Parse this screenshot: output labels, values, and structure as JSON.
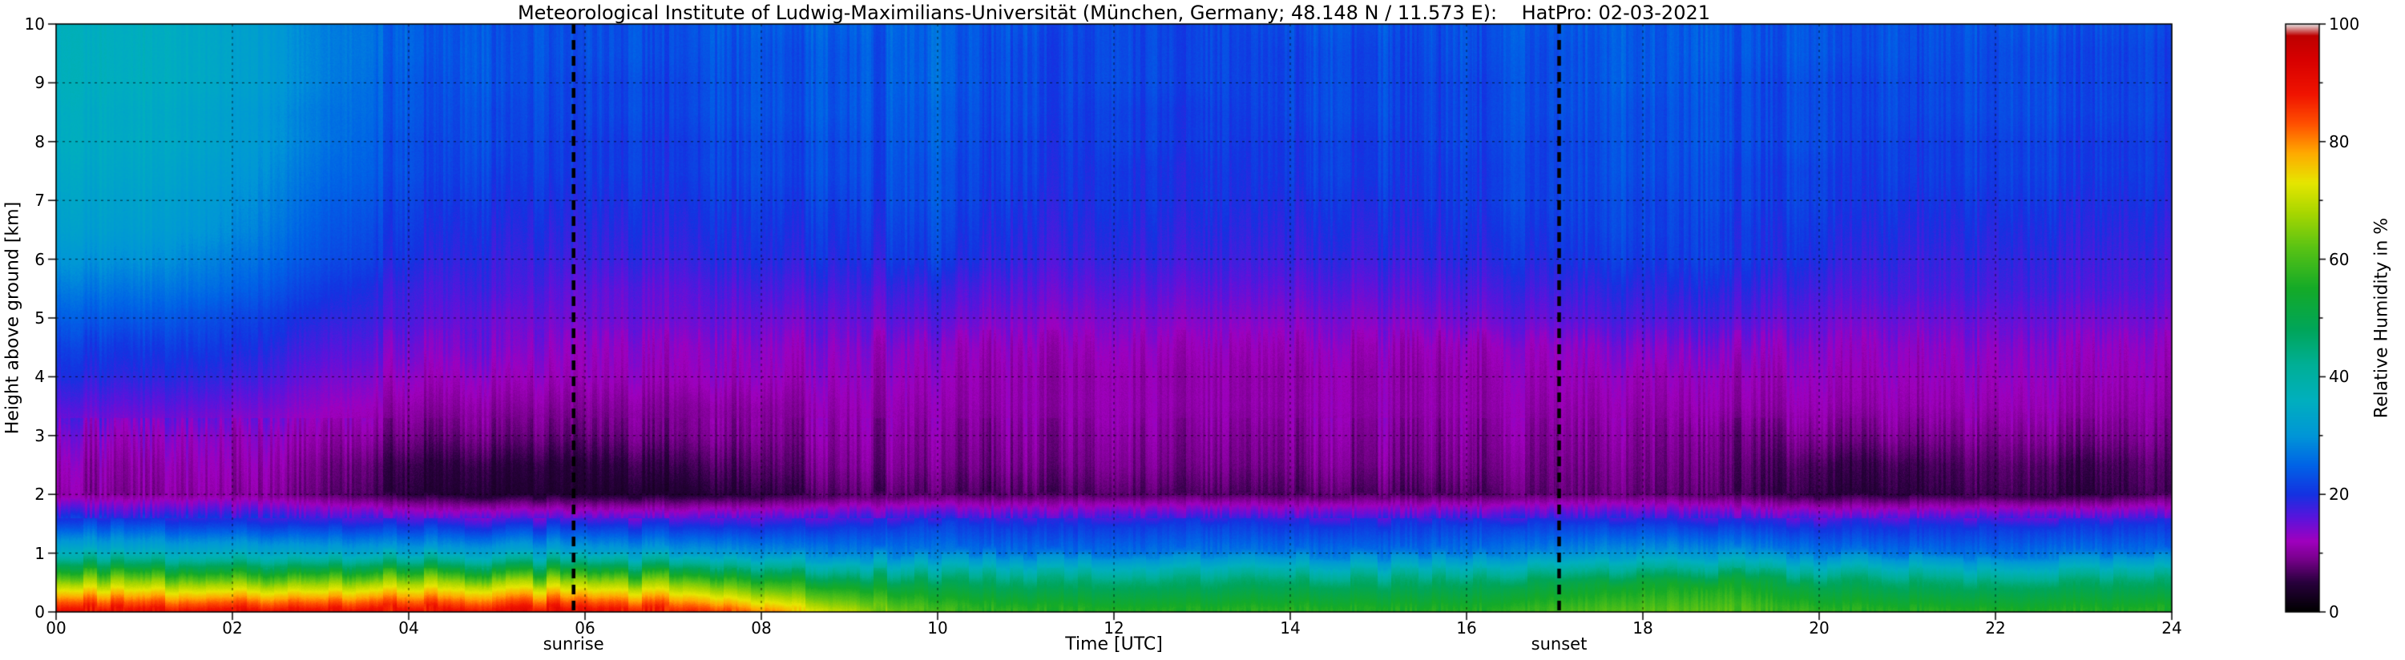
{
  "page": {
    "background": "#ffffff"
  },
  "chart_data": {
    "type": "heatmap",
    "title": "Meteorological Institute of Ludwig-Maximilians-Universität (München, Germany; 48.148 N / 11.573 E):    HatPro: 02-03-2021",
    "xlabel": "Time [UTC]",
    "ylabel": "Height above ground [km]",
    "colorbar_label": "Relative Humidity in %",
    "grid": "dashed",
    "x_axis": {
      "min": 0,
      "max": 24,
      "tick_values": [
        0,
        2,
        4,
        6,
        8,
        10,
        12,
        14,
        16,
        18,
        20,
        22,
        24
      ],
      "tick_labels": [
        "00",
        "02",
        "04",
        "06",
        "08",
        "10",
        "12",
        "14",
        "16",
        "18",
        "20",
        "22",
        "24"
      ]
    },
    "y_axis": {
      "min": 0,
      "max": 10,
      "tick_values": [
        0,
        1,
        2,
        3,
        4,
        5,
        6,
        7,
        8,
        9,
        10
      ],
      "tick_labels": [
        "0",
        "1",
        "2",
        "3",
        "4",
        "5",
        "6",
        "7",
        "8",
        "9",
        "10"
      ]
    },
    "colorbar_axis": {
      "min": 0,
      "max": 100,
      "tick_values": [
        0,
        20,
        40,
        60,
        80,
        100
      ],
      "tick_labels": [
        "0",
        "20",
        "40",
        "60",
        "80",
        "100"
      ],
      "minor_tick_values": [
        10,
        30,
        50,
        70,
        90
      ]
    },
    "annotations": [
      {
        "label": "sunrise",
        "time_utc": 5.87
      },
      {
        "label": "sunset",
        "time_utc": 17.05
      }
    ],
    "times_utc": [
      0,
      1,
      2,
      3,
      4,
      5,
      6,
      7,
      8,
      9,
      10,
      11,
      12,
      13,
      14,
      15,
      16,
      17,
      18,
      19,
      20,
      21,
      22,
      23,
      24
    ],
    "heights_km": [
      0,
      0.5,
      1,
      1.5,
      2,
      2.5,
      3,
      3.5,
      4,
      4.5,
      5,
      5.5,
      6,
      6.5,
      7,
      7.5,
      8,
      8.5,
      9,
      9.5,
      10
    ],
    "humidity_percent": [
      [
        91,
        91,
        91,
        91,
        91,
        91,
        91,
        89,
        82,
        70,
        60,
        58,
        57,
        57,
        58,
        57,
        57,
        60,
        62,
        62,
        58,
        57,
        57,
        57,
        57
      ],
      [
        67,
        67,
        66,
        66,
        67,
        68,
        67,
        65,
        58,
        52,
        48,
        46,
        46,
        46,
        47,
        46,
        47,
        50,
        53,
        54,
        48,
        46,
        46,
        47,
        46
      ],
      [
        36,
        36,
        35,
        34,
        33,
        34,
        33,
        32,
        30,
        28,
        27,
        26,
        26,
        27,
        27,
        26,
        27,
        29,
        31,
        30,
        27,
        26,
        26,
        27,
        26
      ],
      [
        22,
        22,
        21,
        20,
        19,
        19,
        19,
        19,
        19,
        20,
        21,
        20,
        20,
        21,
        20,
        20,
        21,
        21,
        21,
        20,
        19,
        19,
        20,
        20,
        20
      ],
      [
        10,
        10,
        10,
        8,
        5,
        4,
        4,
        4,
        5,
        7,
        7,
        7,
        7,
        7,
        7,
        7,
        7,
        8,
        8,
        7,
        5,
        5,
        6,
        5,
        7
      ],
      [
        11,
        11,
        11,
        9,
        6,
        5,
        5,
        6,
        7,
        9,
        9,
        9,
        9,
        9,
        9,
        9,
        9,
        9,
        9,
        8,
        6,
        6,
        7,
        6,
        8
      ],
      [
        13,
        13,
        12,
        11,
        9,
        8,
        8,
        9,
        9,
        10,
        10,
        10,
        10,
        10,
        10,
        10,
        10,
        10,
        10,
        9,
        9,
        9,
        9,
        9,
        10
      ],
      [
        16,
        16,
        15,
        13,
        11,
        10,
        10,
        10,
        10,
        11,
        11,
        11,
        11,
        11,
        11,
        11,
        11,
        11,
        11,
        11,
        11,
        11,
        11,
        11,
        11
      ],
      [
        19,
        19,
        18,
        15,
        13,
        12,
        12,
        12,
        12,
        12,
        12,
        11,
        11,
        11,
        11,
        11,
        11,
        12,
        12,
        12,
        12,
        12,
        12,
        12,
        12
      ],
      [
        21,
        21,
        20,
        17,
        15,
        14,
        13,
        13,
        13,
        13,
        13,
        12,
        12,
        12,
        12,
        12,
        12,
        13,
        14,
        14,
        13,
        13,
        13,
        13,
        13
      ],
      [
        24,
        24,
        22,
        19,
        17,
        15,
        15,
        15,
        15,
        15,
        16,
        14,
        14,
        14,
        14,
        14,
        15,
        16,
        17,
        17,
        15,
        15,
        15,
        15,
        15
      ],
      [
        27,
        27,
        25,
        21,
        18,
        17,
        16,
        16,
        17,
        17,
        18,
        16,
        16,
        16,
        16,
        16,
        17,
        18,
        19,
        19,
        17,
        17,
        17,
        17,
        17
      ],
      [
        30,
        30,
        27,
        23,
        20,
        18,
        18,
        18,
        19,
        19,
        21,
        18,
        18,
        18,
        18,
        18,
        19,
        20,
        21,
        21,
        19,
        18,
        18,
        18,
        18
      ],
      [
        32,
        32,
        29,
        24,
        21,
        19,
        19,
        19,
        20,
        20,
        22,
        19,
        19,
        19,
        19,
        19,
        20,
        21,
        22,
        21,
        20,
        19,
        19,
        19,
        19
      ],
      [
        33,
        33,
        30,
        25,
        22,
        20,
        20,
        20,
        21,
        21,
        23,
        20,
        20,
        20,
        20,
        20,
        21,
        22,
        22,
        22,
        21,
        20,
        20,
        20,
        20
      ],
      [
        34,
        34,
        31,
        26,
        23,
        21,
        21,
        21,
        22,
        22,
        23,
        21,
        20,
        20,
        21,
        21,
        21,
        22,
        23,
        22,
        21,
        21,
        21,
        21,
        21
      ],
      [
        35,
        35,
        32,
        27,
        23,
        22,
        21,
        21,
        22,
        22,
        24,
        21,
        21,
        21,
        21,
        21,
        22,
        22,
        23,
        23,
        22,
        21,
        21,
        21,
        21
      ],
      [
        35,
        35,
        32,
        27,
        24,
        22,
        22,
        22,
        23,
        23,
        24,
        22,
        21,
        21,
        22,
        22,
        22,
        23,
        23,
        23,
        22,
        22,
        22,
        22,
        22
      ],
      [
        36,
        36,
        33,
        28,
        24,
        23,
        22,
        22,
        23,
        23,
        25,
        22,
        22,
        22,
        22,
        22,
        22,
        23,
        24,
        23,
        22,
        22,
        22,
        22,
        22
      ],
      [
        36,
        36,
        33,
        28,
        25,
        23,
        23,
        23,
        23,
        23,
        25,
        22,
        22,
        22,
        22,
        22,
        23,
        23,
        24,
        24,
        23,
        23,
        22,
        22,
        22
      ],
      [
        36,
        36,
        33,
        28,
        25,
        23,
        23,
        23,
        24,
        24,
        25,
        23,
        22,
        22,
        23,
        23,
        23,
        24,
        24,
        24,
        23,
        23,
        23,
        23,
        23
      ]
    ],
    "colormap_stops": [
      {
        "value": 0,
        "color": "#000000"
      },
      {
        "value": 5,
        "color": "#28003c"
      },
      {
        "value": 9,
        "color": "#78008c"
      },
      {
        "value": 12,
        "color": "#a000be"
      },
      {
        "value": 16,
        "color": "#5a14dc"
      },
      {
        "value": 20,
        "color": "#1432e1"
      },
      {
        "value": 25,
        "color": "#0064e6"
      },
      {
        "value": 30,
        "color": "#0096d7"
      },
      {
        "value": 36,
        "color": "#00afbe"
      },
      {
        "value": 42,
        "color": "#00af96"
      },
      {
        "value": 48,
        "color": "#00a55a"
      },
      {
        "value": 55,
        "color": "#14aa28"
      },
      {
        "value": 62,
        "color": "#5ac314"
      },
      {
        "value": 68,
        "color": "#aad700"
      },
      {
        "value": 73,
        "color": "#e6e600"
      },
      {
        "value": 78,
        "color": "#ffaa00"
      },
      {
        "value": 83,
        "color": "#ff5000"
      },
      {
        "value": 88,
        "color": "#f01400"
      },
      {
        "value": 94,
        "color": "#d70000"
      },
      {
        "value": 98,
        "color": "#be0000"
      },
      {
        "value": 100,
        "color": "#e6e6e6"
      }
    ]
  }
}
